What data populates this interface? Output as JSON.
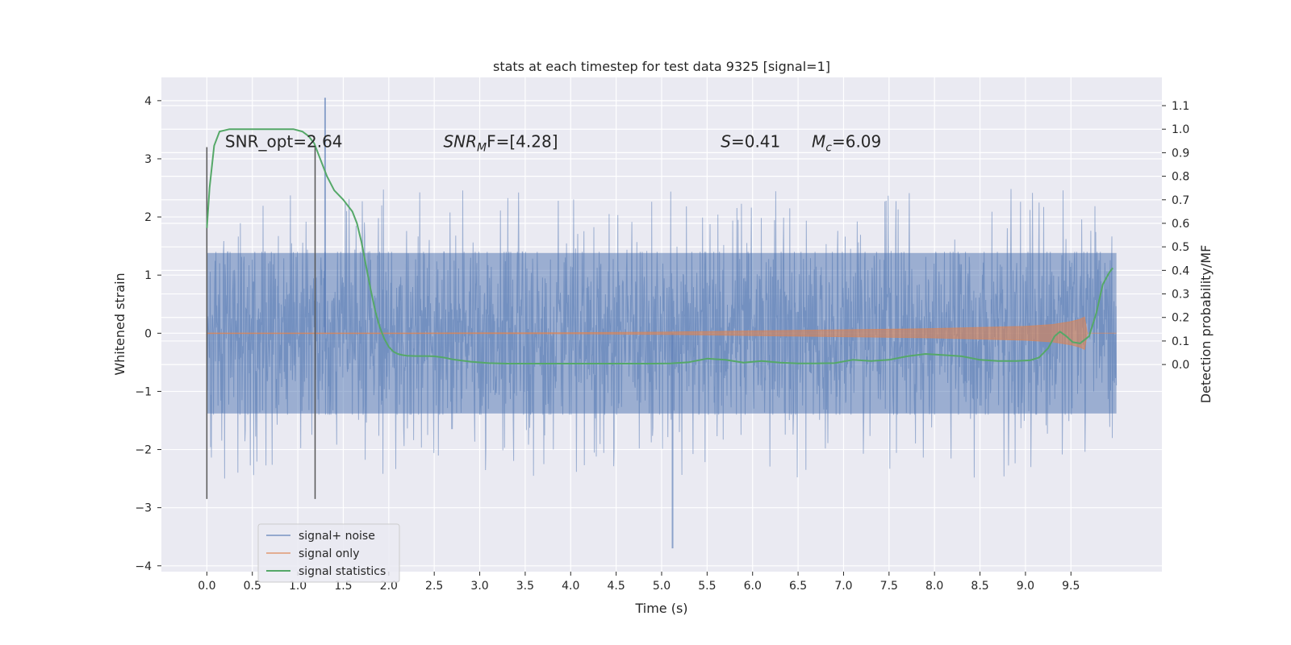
{
  "chart_data": {
    "type": "line",
    "title": "stats at each timestep for test data 9325 [signal=1]",
    "xlabel": "Time (s)",
    "ylabel": "Whitened strain",
    "ylabel_right": "Detection probability/MF",
    "xlim": [
      -0.5,
      10.5
    ],
    "ylim": [
      -4.1,
      4.4
    ],
    "ylim_right": [
      -0.88,
      1.22
    ],
    "x_ticks": [
      "0.0",
      "0.5",
      "1.0",
      "1.5",
      "2.0",
      "2.5",
      "3.0",
      "3.5",
      "4.0",
      "4.5",
      "5.0",
      "5.5",
      "6.0",
      "6.5",
      "7.0",
      "7.5",
      "8.0",
      "8.5",
      "9.0",
      "9.5"
    ],
    "y_ticks": [
      "4",
      "3",
      "2",
      "1",
      "0",
      "−1",
      "−2",
      "−3",
      "−4"
    ],
    "y_right_ticks": [
      "1.1",
      "1.0",
      "0.9",
      "0.8",
      "0.7",
      "0.6",
      "0.5",
      "0.4",
      "0.3",
      "0.2",
      "0.1",
      "0.0"
    ],
    "grid": true,
    "legend_position": "lower-left",
    "annotations": [
      {
        "text": "SNR_opt=2.64",
        "x": 0.2,
        "y": 3.2
      },
      {
        "text": "SNR",
        "sub": "M",
        "suffix": "F=[4.28]",
        "x": 2.6,
        "y": 3.2
      },
      {
        "text": "S",
        "suffix": "=0.41",
        "x": 5.65,
        "y": 3.2
      },
      {
        "text": "M",
        "sub": "c",
        "suffix": "=6.09",
        "x": 6.65,
        "y": 3.2
      }
    ],
    "vlines": [
      {
        "x": 0.0,
        "ymin": -2.85,
        "ymax": 3.2
      },
      {
        "x": 1.19,
        "ymin": -2.85,
        "ymax": 3.2
      }
    ],
    "series": [
      {
        "name": "signal+ noise",
        "color": "#4c72b0",
        "x_range": [
          0.0,
          10.0
        ],
        "envelope_core": 1.4,
        "min": -3.7,
        "max": 4.05
      },
      {
        "name": "signal only",
        "color": "#dd8452",
        "x": [
          0.0,
          1.0,
          2.0,
          3.0,
          4.0,
          5.0,
          6.0,
          7.0,
          8.0,
          8.5,
          9.0,
          9.3,
          9.5,
          9.6,
          9.65,
          9.68,
          10.0
        ],
        "amplitude": [
          0.005,
          0.005,
          0.005,
          0.007,
          0.01,
          0.02,
          0.04,
          0.06,
          0.08,
          0.1,
          0.12,
          0.15,
          0.2,
          0.24,
          0.28,
          0.0,
          0.0
        ]
      },
      {
        "name": "signal statistics",
        "color": "#55a868",
        "axis": "right",
        "x": [
          0.0,
          0.03,
          0.08,
          0.14,
          0.25,
          0.4,
          0.6,
          0.8,
          0.95,
          1.05,
          1.12,
          1.18,
          1.25,
          1.32,
          1.4,
          1.5,
          1.6,
          1.65,
          1.7,
          1.75,
          1.8,
          1.85,
          1.9,
          1.95,
          2.0,
          2.05,
          2.1,
          2.15,
          2.2,
          2.3,
          2.4,
          2.5,
          2.6,
          2.7,
          2.9,
          3.1,
          3.3,
          3.5,
          3.8,
          4.0,
          4.3,
          4.6,
          4.9,
          5.1,
          5.3,
          5.5,
          5.7,
          5.9,
          6.1,
          6.3,
          6.5,
          6.7,
          6.9,
          7.1,
          7.3,
          7.5,
          7.7,
          7.9,
          8.1,
          8.3,
          8.5,
          8.7,
          8.9,
          9.05,
          9.15,
          9.25,
          9.32,
          9.38,
          9.45,
          9.52,
          9.6,
          9.7,
          9.78,
          9.85,
          9.92,
          9.96
        ],
        "y": [
          0.58,
          0.75,
          0.93,
          0.99,
          1.0,
          1.0,
          1.0,
          1.0,
          1.0,
          0.99,
          0.97,
          0.94,
          0.87,
          0.8,
          0.74,
          0.7,
          0.65,
          0.6,
          0.52,
          0.42,
          0.32,
          0.23,
          0.16,
          0.11,
          0.075,
          0.055,
          0.045,
          0.04,
          0.037,
          0.036,
          0.036,
          0.035,
          0.03,
          0.022,
          0.012,
          0.006,
          0.004,
          0.004,
          0.004,
          0.004,
          0.004,
          0.004,
          0.004,
          0.005,
          0.01,
          0.025,
          0.02,
          0.008,
          0.015,
          0.008,
          0.005,
          0.005,
          0.006,
          0.02,
          0.015,
          0.02,
          0.035,
          0.045,
          0.04,
          0.035,
          0.02,
          0.015,
          0.015,
          0.018,
          0.03,
          0.07,
          0.12,
          0.14,
          0.12,
          0.095,
          0.09,
          0.12,
          0.22,
          0.34,
          0.39,
          0.41
        ]
      }
    ]
  }
}
